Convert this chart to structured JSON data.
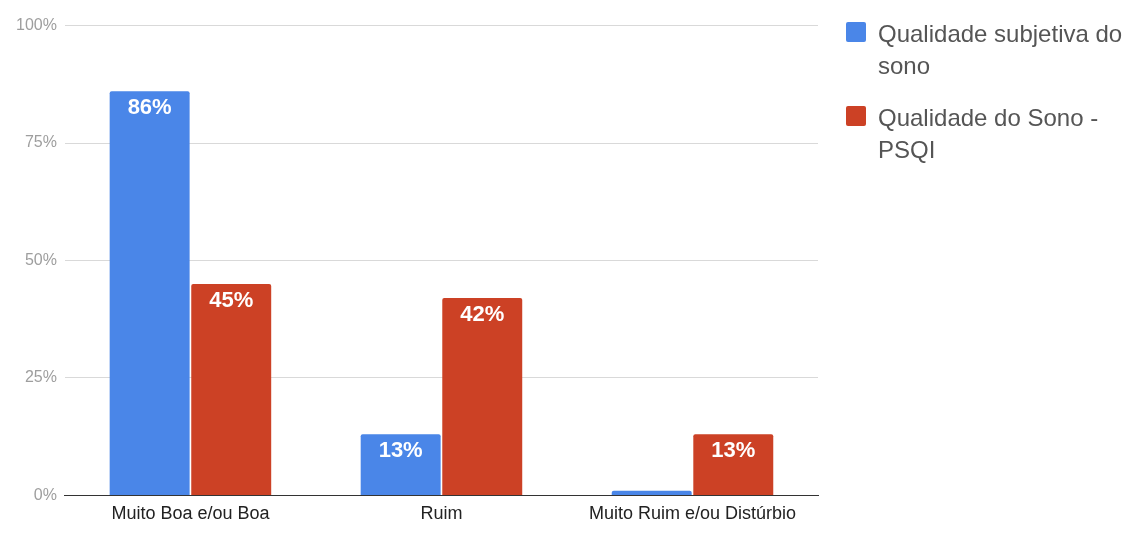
{
  "chart_data": {
    "type": "bar",
    "categories": [
      "Muito Boa e/ou Boa",
      "Ruim",
      "Muito Ruim e/ou Distúrbio"
    ],
    "series": [
      {
        "name": "Qualidade subjetiva do sono",
        "color": "#4a86e8",
        "values": [
          86,
          13,
          1
        ],
        "value_labels": [
          "86%",
          "13%",
          null
        ]
      },
      {
        "name": "Qualidade do Sono - PSQI",
        "color": "#cc4125",
        "values": [
          45,
          42,
          13
        ],
        "value_labels": [
          "45%",
          "42%",
          "13%"
        ]
      }
    ],
    "ylim": [
      0,
      100
    ],
    "yticks": [
      {
        "value": 0,
        "label": "0%"
      },
      {
        "value": 25,
        "label": "25%"
      },
      {
        "value": 50,
        "label": "50%"
      },
      {
        "value": 75,
        "label": "75%"
      },
      {
        "value": 100,
        "label": "100%"
      }
    ],
    "grid": "y",
    "legend": "top right"
  }
}
